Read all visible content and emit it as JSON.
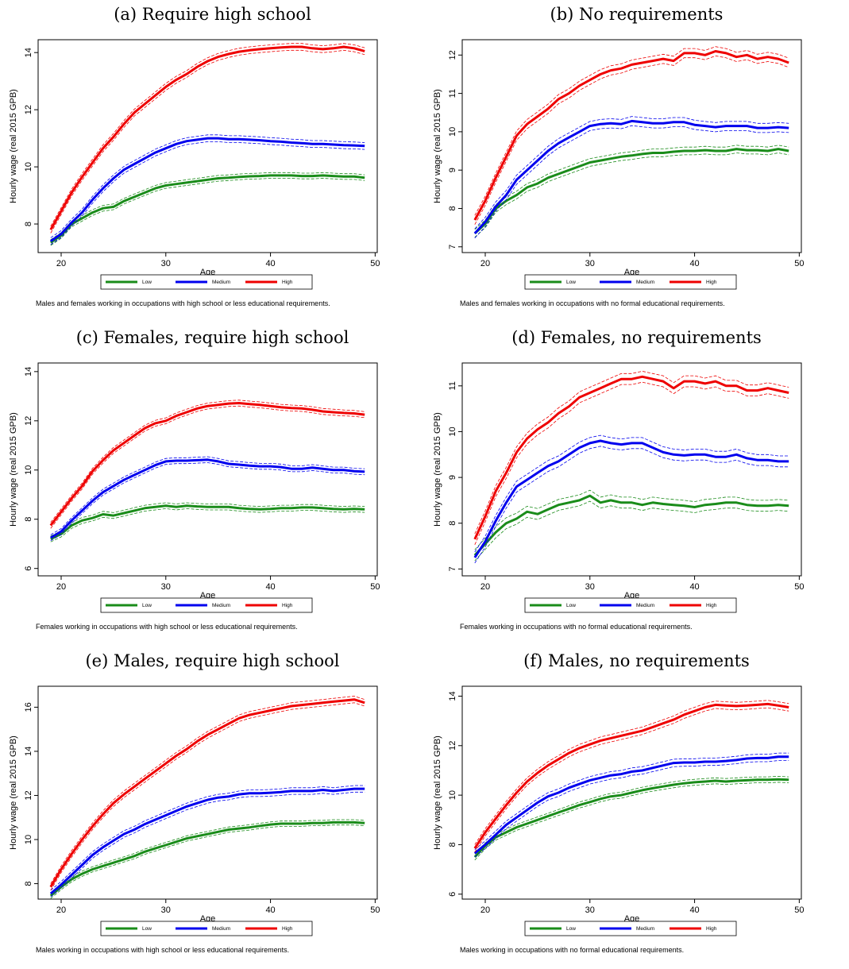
{
  "legend_labels": [
    "Low",
    "Medium",
    "High"
  ],
  "colors": {
    "Low": "#1a8c1a",
    "Medium": "#0000ee",
    "High": "#ee0000"
  },
  "chart_data": [
    {
      "type": "line",
      "title": "(a) Require high school",
      "xlabel": "Age",
      "ylabel": "Hourly wage (real 2015 GPB)",
      "xlim": [
        17.8,
        50.2
      ],
      "ylim": [
        7.0,
        14.45
      ],
      "xticks": [
        20,
        30,
        40,
        50
      ],
      "yticks": [
        8,
        10,
        12,
        14
      ],
      "note": "Males and females working in occupations with high school or less educational requirements.",
      "legend_position": "bottom",
      "x": [
        19,
        20,
        21,
        22,
        23,
        24,
        25,
        26,
        27,
        28,
        29,
        30,
        31,
        32,
        33,
        34,
        35,
        36,
        37,
        38,
        39,
        40,
        41,
        42,
        43,
        44,
        45,
        46,
        47,
        48,
        49
      ],
      "series": [
        {
          "name": "Low",
          "values": [
            7.35,
            7.6,
            8.0,
            8.2,
            8.4,
            8.55,
            8.6,
            8.8,
            8.95,
            9.1,
            9.25,
            9.35,
            9.4,
            9.45,
            9.5,
            9.55,
            9.6,
            9.62,
            9.65,
            9.67,
            9.68,
            9.7,
            9.7,
            9.7,
            9.68,
            9.68,
            9.7,
            9.68,
            9.66,
            9.66,
            9.62
          ],
          "ci": 0.1
        },
        {
          "name": "Medium",
          "values": [
            7.4,
            7.65,
            8.05,
            8.4,
            8.85,
            9.25,
            9.6,
            9.9,
            10.1,
            10.3,
            10.5,
            10.65,
            10.8,
            10.9,
            10.95,
            11.0,
            11.0,
            10.97,
            10.97,
            10.95,
            10.93,
            10.9,
            10.88,
            10.85,
            10.83,
            10.8,
            10.8,
            10.78,
            10.76,
            10.75,
            10.73
          ],
          "ci": 0.12
        },
        {
          "name": "High",
          "values": [
            7.8,
            8.45,
            9.1,
            9.65,
            10.15,
            10.65,
            11.05,
            11.5,
            11.9,
            12.2,
            12.5,
            12.8,
            13.05,
            13.25,
            13.5,
            13.7,
            13.85,
            13.95,
            14.03,
            14.08,
            14.12,
            14.15,
            14.18,
            14.2,
            14.2,
            14.15,
            14.12,
            14.15,
            14.2,
            14.15,
            14.05
          ],
          "ci": 0.12
        }
      ]
    },
    {
      "type": "line",
      "title": "(b) No requirements",
      "xlabel": "Age",
      "ylabel": "Hourly wage (real 2015 GPB)",
      "xlim": [
        17.8,
        50.2
      ],
      "ylim": [
        6.85,
        12.4
      ],
      "xticks": [
        20,
        30,
        40,
        50
      ],
      "yticks": [
        7,
        8,
        9,
        10,
        11,
        12
      ],
      "note": "Males and females working in occupations with no formal educational requirements.",
      "legend_position": "bottom",
      "x": [
        19,
        20,
        21,
        22,
        23,
        24,
        25,
        26,
        27,
        28,
        29,
        30,
        31,
        32,
        33,
        34,
        35,
        36,
        37,
        38,
        39,
        40,
        41,
        42,
        43,
        44,
        45,
        46,
        47,
        48,
        49
      ],
      "series": [
        {
          "name": "Low",
          "values": [
            7.35,
            7.6,
            8.0,
            8.2,
            8.35,
            8.55,
            8.65,
            8.8,
            8.9,
            9.0,
            9.1,
            9.2,
            9.25,
            9.3,
            9.35,
            9.38,
            9.42,
            9.45,
            9.45,
            9.48,
            9.5,
            9.5,
            9.52,
            9.5,
            9.5,
            9.55,
            9.52,
            9.52,
            9.5,
            9.55,
            9.5
          ],
          "ci": 0.1
        },
        {
          "name": "Medium",
          "values": [
            7.35,
            7.65,
            8.05,
            8.35,
            8.75,
            9.0,
            9.25,
            9.5,
            9.7,
            9.85,
            10.0,
            10.15,
            10.2,
            10.22,
            10.2,
            10.28,
            10.25,
            10.22,
            10.22,
            10.25,
            10.25,
            10.18,
            10.15,
            10.12,
            10.15,
            10.15,
            10.15,
            10.1,
            10.1,
            10.12,
            10.1
          ],
          "ci": 0.12
        },
        {
          "name": "High",
          "values": [
            7.7,
            8.2,
            8.8,
            9.35,
            9.9,
            10.2,
            10.4,
            10.6,
            10.85,
            11.0,
            11.2,
            11.35,
            11.5,
            11.6,
            11.65,
            11.75,
            11.8,
            11.85,
            11.9,
            11.85,
            12.05,
            12.05,
            12.0,
            12.1,
            12.05,
            11.95,
            12.0,
            11.9,
            11.95,
            11.9,
            11.8
          ],
          "ci": 0.12
        }
      ]
    },
    {
      "type": "line",
      "title": "(c) Females, require high school",
      "xlabel": "Age",
      "ylabel": "Hourly wage (real 2015 GPB)",
      "xlim": [
        17.8,
        50.2
      ],
      "ylim": [
        5.7,
        14.35
      ],
      "xticks": [
        20,
        30,
        40,
        50
      ],
      "yticks": [
        6,
        8,
        10,
        12,
        14
      ],
      "note": "Females working in occupations with high school or less educational requirements.",
      "legend_position": "bottom",
      "x": [
        19,
        20,
        21,
        22,
        23,
        24,
        25,
        26,
        27,
        28,
        29,
        30,
        31,
        32,
        33,
        34,
        35,
        36,
        37,
        38,
        39,
        40,
        41,
        42,
        43,
        44,
        45,
        46,
        47,
        48,
        49
      ],
      "series": [
        {
          "name": "Low",
          "values": [
            7.2,
            7.4,
            7.75,
            7.95,
            8.05,
            8.2,
            8.15,
            8.25,
            8.35,
            8.45,
            8.5,
            8.55,
            8.5,
            8.55,
            8.52,
            8.5,
            8.5,
            8.5,
            8.45,
            8.42,
            8.4,
            8.42,
            8.45,
            8.45,
            8.48,
            8.48,
            8.45,
            8.42,
            8.4,
            8.42,
            8.4
          ],
          "ci": 0.12
        },
        {
          "name": "Medium",
          "values": [
            7.25,
            7.5,
            7.95,
            8.35,
            8.75,
            9.1,
            9.35,
            9.6,
            9.8,
            10.0,
            10.2,
            10.35,
            10.38,
            10.38,
            10.4,
            10.42,
            10.35,
            10.25,
            10.22,
            10.18,
            10.15,
            10.15,
            10.12,
            10.05,
            10.05,
            10.1,
            10.05,
            10.0,
            10.0,
            9.95,
            9.93
          ],
          "ci": 0.12
        },
        {
          "name": "High",
          "values": [
            7.75,
            8.3,
            8.85,
            9.35,
            9.95,
            10.4,
            10.8,
            11.1,
            11.4,
            11.7,
            11.9,
            12.0,
            12.2,
            12.35,
            12.5,
            12.6,
            12.65,
            12.7,
            12.72,
            12.68,
            12.65,
            12.6,
            12.55,
            12.52,
            12.5,
            12.45,
            12.38,
            12.35,
            12.32,
            12.3,
            12.25
          ],
          "ci": 0.12
        }
      ]
    },
    {
      "type": "line",
      "title": "(d) Females, no requirements",
      "xlabel": "Age",
      "ylabel": "Hourly wage (real 2015 GPB)",
      "xlim": [
        17.8,
        50.2
      ],
      "ylim": [
        6.85,
        11.5
      ],
      "xticks": [
        20,
        30,
        40,
        50
      ],
      "yticks": [
        7,
        8,
        9,
        10,
        11
      ],
      "note": "Females working in occupations with no formal educational requirements.",
      "legend_position": "bottom",
      "x": [
        19,
        20,
        21,
        22,
        23,
        24,
        25,
        26,
        27,
        28,
        29,
        30,
        31,
        32,
        33,
        34,
        35,
        36,
        37,
        38,
        39,
        40,
        41,
        42,
        43,
        44,
        45,
        46,
        47,
        48,
        49
      ],
      "series": [
        {
          "name": "Low",
          "values": [
            7.3,
            7.55,
            7.8,
            8.0,
            8.1,
            8.25,
            8.2,
            8.3,
            8.4,
            8.45,
            8.5,
            8.6,
            8.45,
            8.5,
            8.45,
            8.45,
            8.4,
            8.45,
            8.42,
            8.4,
            8.38,
            8.35,
            8.4,
            8.42,
            8.45,
            8.45,
            8.4,
            8.38,
            8.38,
            8.4,
            8.38
          ],
          "ci": 0.12
        },
        {
          "name": "Medium",
          "values": [
            7.25,
            7.6,
            8.05,
            8.45,
            8.8,
            8.95,
            9.1,
            9.25,
            9.35,
            9.5,
            9.65,
            9.75,
            9.8,
            9.75,
            9.72,
            9.75,
            9.75,
            9.65,
            9.55,
            9.5,
            9.48,
            9.5,
            9.5,
            9.45,
            9.45,
            9.5,
            9.42,
            9.38,
            9.38,
            9.35,
            9.35
          ],
          "ci": 0.12
        },
        {
          "name": "High",
          "values": [
            7.65,
            8.15,
            8.7,
            9.1,
            9.55,
            9.85,
            10.05,
            10.2,
            10.4,
            10.55,
            10.75,
            10.85,
            10.95,
            11.05,
            11.15,
            11.15,
            11.2,
            11.15,
            11.1,
            10.95,
            11.1,
            11.1,
            11.05,
            11.1,
            11.0,
            11.0,
            10.9,
            10.9,
            10.95,
            10.9,
            10.85
          ],
          "ci": 0.12
        }
      ]
    },
    {
      "type": "line",
      "title": "(e) Males, require high school",
      "xlabel": "Age",
      "ylabel": "Hourly wage (real 2015 GPB)",
      "xlim": [
        17.8,
        50.2
      ],
      "ylim": [
        7.3,
        16.95
      ],
      "xticks": [
        20,
        30,
        40,
        50
      ],
      "yticks": [
        8,
        10,
        12,
        14,
        16
      ],
      "note": "Males working in occupations with high school or less educational requirements.",
      "legend_position": "bottom",
      "x": [
        19,
        20,
        21,
        22,
        23,
        24,
        25,
        26,
        27,
        28,
        29,
        30,
        31,
        32,
        33,
        34,
        35,
        36,
        37,
        38,
        39,
        40,
        41,
        42,
        43,
        44,
        45,
        46,
        47,
        48,
        49
      ],
      "series": [
        {
          "name": "Low",
          "values": [
            7.45,
            7.85,
            8.2,
            8.45,
            8.65,
            8.8,
            8.95,
            9.1,
            9.25,
            9.45,
            9.6,
            9.75,
            9.9,
            10.05,
            10.15,
            10.25,
            10.35,
            10.45,
            10.5,
            10.55,
            10.62,
            10.68,
            10.72,
            10.72,
            10.72,
            10.75,
            10.75,
            10.78,
            10.78,
            10.78,
            10.75
          ],
          "ci": 0.12
        },
        {
          "name": "Medium",
          "values": [
            7.55,
            7.95,
            8.4,
            8.85,
            9.3,
            9.65,
            9.95,
            10.25,
            10.45,
            10.7,
            10.9,
            11.1,
            11.3,
            11.5,
            11.65,
            11.8,
            11.9,
            11.95,
            12.05,
            12.1,
            12.1,
            12.12,
            12.15,
            12.2,
            12.2,
            12.2,
            12.25,
            12.2,
            12.25,
            12.3,
            12.3
          ],
          "ci": 0.15
        },
        {
          "name": "High",
          "values": [
            7.85,
            8.65,
            9.35,
            10.0,
            10.6,
            11.15,
            11.65,
            12.05,
            12.4,
            12.75,
            13.1,
            13.45,
            13.8,
            14.1,
            14.45,
            14.75,
            15.0,
            15.25,
            15.5,
            15.65,
            15.75,
            15.85,
            15.95,
            16.05,
            16.1,
            16.15,
            16.2,
            16.25,
            16.3,
            16.35,
            16.2
          ],
          "ci": 0.15
        }
      ]
    },
    {
      "type": "line",
      "title": "(f) Males, no requirements",
      "xlabel": "Age",
      "ylabel": "Hourly wage (real 2015 GPB)",
      "xlim": [
        17.8,
        50.2
      ],
      "ylim": [
        5.8,
        14.4
      ],
      "xticks": [
        20,
        30,
        40,
        50
      ],
      "yticks": [
        6,
        8,
        10,
        12,
        14
      ],
      "note": "Males working in occupations with no formal educational requirements.",
      "legend_position": "bottom",
      "x": [
        19,
        20,
        21,
        22,
        23,
        24,
        25,
        26,
        27,
        28,
        29,
        30,
        31,
        32,
        33,
        34,
        35,
        36,
        37,
        38,
        39,
        40,
        41,
        42,
        43,
        44,
        45,
        46,
        47,
        48,
        49
      ],
      "series": [
        {
          "name": "Low",
          "values": [
            7.5,
            7.95,
            8.3,
            8.5,
            8.7,
            8.85,
            9.0,
            9.15,
            9.3,
            9.45,
            9.6,
            9.72,
            9.85,
            9.95,
            10.0,
            10.1,
            10.2,
            10.28,
            10.35,
            10.42,
            10.48,
            10.52,
            10.55,
            10.58,
            10.55,
            10.58,
            10.6,
            10.62,
            10.62,
            10.64,
            10.62
          ],
          "ci": 0.12
        },
        {
          "name": "Medium",
          "values": [
            7.65,
            8.0,
            8.4,
            8.8,
            9.1,
            9.4,
            9.7,
            9.95,
            10.1,
            10.3,
            10.45,
            10.6,
            10.7,
            10.8,
            10.85,
            10.95,
            11.0,
            11.1,
            11.2,
            11.3,
            11.32,
            11.32,
            11.35,
            11.35,
            11.38,
            11.42,
            11.48,
            11.5,
            11.5,
            11.55,
            11.55
          ],
          "ci": 0.15
        },
        {
          "name": "High",
          "values": [
            7.85,
            8.5,
            9.05,
            9.6,
            10.1,
            10.55,
            10.9,
            11.2,
            11.45,
            11.7,
            11.9,
            12.05,
            12.2,
            12.3,
            12.4,
            12.5,
            12.6,
            12.75,
            12.9,
            13.05,
            13.25,
            13.4,
            13.55,
            13.65,
            13.62,
            13.6,
            13.62,
            13.65,
            13.68,
            13.62,
            13.55
          ],
          "ci": 0.15
        }
      ]
    }
  ]
}
